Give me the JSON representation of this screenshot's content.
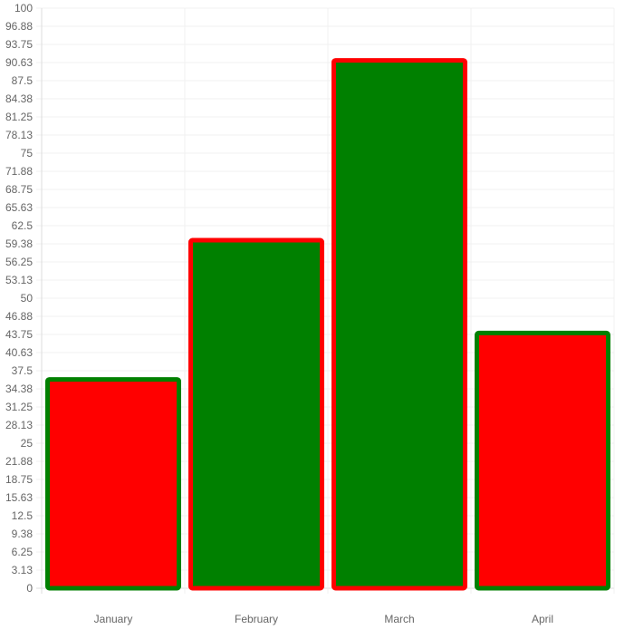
{
  "chart_data": {
    "type": "bar",
    "categories": [
      "January",
      "February",
      "March",
      "April"
    ],
    "values": [
      36,
      60,
      91,
      44
    ],
    "y_ticks": [
      "0",
      "3.13",
      "6.25",
      "9.38",
      "12.5",
      "15.63",
      "18.75",
      "21.88",
      "25",
      "28.13",
      "31.25",
      "34.38",
      "37.5",
      "40.63",
      "43.75",
      "46.88",
      "50",
      "53.13",
      "56.25",
      "59.38",
      "62.5",
      "65.63",
      "68.75",
      "71.88",
      "75",
      "78.13",
      "81.25",
      "84.38",
      "87.5",
      "90.63",
      "93.75",
      "96.88",
      "100"
    ],
    "ylim": [
      0,
      100
    ],
    "grid": true,
    "bar_fill_colors": [
      "#ff0000",
      "#008000",
      "#008000",
      "#ff0000"
    ],
    "bar_border_colors": [
      "#008000",
      "#ff0000",
      "#ff0000",
      "#008000"
    ],
    "grid_color": "#f1f1f1",
    "label_color": "#666666",
    "title": "",
    "xlabel": "",
    "ylabel": ""
  }
}
